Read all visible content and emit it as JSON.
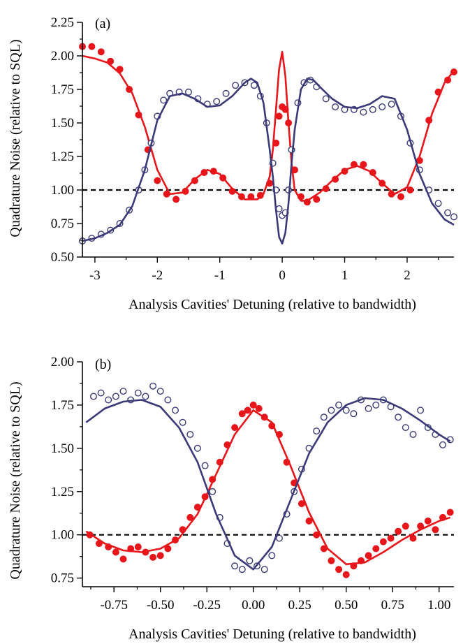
{
  "colors": {
    "red_series": "#e8151b",
    "blue_series": "#3a3a78",
    "reference_line": "#000000"
  },
  "chart_data": [
    {
      "panel_label": "(a)",
      "type": "scatter",
      "xlabel": "Analysis Cavities' Detuning (relative to bandwidth)",
      "ylabel": "Quadrature Noise (relative to SQL)",
      "xlim": [
        -3.2,
        2.75
      ],
      "ylim": [
        0.5,
        2.25
      ],
      "xticks": [
        -3,
        -2,
        -1,
        0,
        1,
        2
      ],
      "xtick_labels": [
        "-3",
        "-2",
        "-1",
        "0",
        "1",
        "2"
      ],
      "yticks": [
        0.5,
        0.75,
        1.0,
        1.25,
        1.5,
        1.75,
        2.0,
        2.25
      ],
      "ytick_labels": [
        "0.50",
        "0.75",
        "1.00",
        "1.25",
        "1.50",
        "1.75",
        "2.00",
        "2.25"
      ],
      "reference_line_y": 1.0,
      "grid": false,
      "series": [
        {
          "style": "filled-markers",
          "color_key": "red_series",
          "x": [
            -3.2,
            -3.05,
            -2.9,
            -2.75,
            -2.6,
            -2.45,
            -2.3,
            -2.15,
            -2.0,
            -1.85,
            -1.7,
            -1.55,
            -1.4,
            -1.25,
            -1.1,
            -0.95,
            -0.8,
            -0.65,
            -0.5,
            -0.35,
            -0.2,
            -0.1,
            -0.05,
            0.0,
            0.05,
            0.1,
            0.2,
            0.3,
            0.4,
            0.55,
            0.7,
            0.85,
            1.0,
            1.15,
            1.3,
            1.45,
            1.6,
            1.75,
            1.9,
            2.05,
            2.2,
            2.35,
            2.5,
            2.65,
            2.75
          ],
          "y": [
            2.07,
            2.07,
            2.03,
            1.96,
            1.9,
            1.75,
            1.56,
            1.3,
            1.07,
            0.97,
            0.93,
            0.99,
            1.07,
            1.13,
            1.14,
            1.09,
            0.99,
            0.95,
            0.95,
            0.96,
            1.05,
            1.35,
            1.55,
            1.62,
            1.6,
            1.5,
            1.15,
            0.95,
            0.91,
            0.93,
            1.01,
            1.08,
            1.14,
            1.19,
            1.19,
            1.13,
            1.05,
            0.97,
            0.95,
            1.0,
            1.22,
            1.52,
            1.73,
            1.82,
            1.88
          ]
        },
        {
          "style": "line",
          "color_key": "red_series",
          "x": [
            -3.2,
            -3.0,
            -2.8,
            -2.6,
            -2.4,
            -2.2,
            -2.0,
            -1.8,
            -1.6,
            -1.4,
            -1.2,
            -1.0,
            -0.8,
            -0.6,
            -0.4,
            -0.3,
            -0.2,
            -0.15,
            -0.1,
            -0.05,
            0.0,
            0.05,
            0.1,
            0.15,
            0.2,
            0.3,
            0.4,
            0.6,
            0.8,
            1.0,
            1.2,
            1.4,
            1.6,
            1.8,
            2.0,
            2.2,
            2.4,
            2.6,
            2.75
          ],
          "y": [
            2.0,
            1.98,
            1.95,
            1.87,
            1.72,
            1.47,
            1.15,
            0.97,
            0.98,
            1.08,
            1.15,
            1.12,
            1.01,
            0.93,
            0.93,
            0.97,
            1.1,
            1.3,
            1.6,
            1.9,
            2.03,
            1.85,
            1.5,
            1.2,
            1.0,
            0.92,
            0.92,
            0.98,
            1.07,
            1.15,
            1.18,
            1.14,
            1.05,
            0.97,
            1.02,
            1.25,
            1.57,
            1.8,
            1.89
          ]
        },
        {
          "style": "open-markers",
          "color_key": "blue_series",
          "x": [
            -3.2,
            -3.05,
            -2.9,
            -2.75,
            -2.6,
            -2.45,
            -2.3,
            -2.2,
            -2.1,
            -2.0,
            -1.9,
            -1.8,
            -1.65,
            -1.5,
            -1.35,
            -1.2,
            -1.05,
            -0.9,
            -0.75,
            -0.6,
            -0.45,
            -0.35,
            -0.25,
            -0.15,
            -0.1,
            -0.05,
            0.0,
            0.05,
            0.1,
            0.15,
            0.25,
            0.35,
            0.45,
            0.55,
            0.7,
            0.85,
            1.0,
            1.15,
            1.3,
            1.45,
            1.6,
            1.75,
            1.9,
            2.05,
            2.2,
            2.35,
            2.5,
            2.65,
            2.75
          ],
          "y": [
            0.62,
            0.64,
            0.67,
            0.7,
            0.75,
            0.85,
            1.0,
            1.15,
            1.35,
            1.55,
            1.67,
            1.72,
            1.73,
            1.73,
            1.68,
            1.64,
            1.66,
            1.72,
            1.78,
            1.8,
            1.78,
            1.7,
            1.5,
            1.2,
            1.0,
            0.86,
            0.81,
            0.83,
            1.0,
            1.3,
            1.65,
            1.8,
            1.82,
            1.77,
            1.68,
            1.62,
            1.6,
            1.6,
            1.58,
            1.6,
            1.62,
            1.64,
            1.55,
            1.35,
            1.15,
            1.0,
            0.9,
            0.83,
            0.8
          ]
        },
        {
          "style": "line",
          "color_key": "blue_series",
          "x": [
            -3.2,
            -3.0,
            -2.8,
            -2.6,
            -2.4,
            -2.2,
            -2.0,
            -1.8,
            -1.6,
            -1.4,
            -1.2,
            -1.0,
            -0.8,
            -0.6,
            -0.5,
            -0.4,
            -0.3,
            -0.2,
            -0.15,
            -0.1,
            -0.05,
            0.0,
            0.05,
            0.1,
            0.15,
            0.2,
            0.3,
            0.4,
            0.5,
            0.6,
            0.8,
            1.0,
            1.2,
            1.4,
            1.6,
            1.8,
            2.0,
            2.2,
            2.4,
            2.6,
            2.75
          ],
          "y": [
            0.62,
            0.64,
            0.68,
            0.74,
            0.88,
            1.15,
            1.52,
            1.7,
            1.72,
            1.68,
            1.62,
            1.63,
            1.7,
            1.8,
            1.83,
            1.8,
            1.65,
            1.3,
            1.1,
            0.85,
            0.65,
            0.6,
            0.68,
            0.9,
            1.2,
            1.45,
            1.75,
            1.83,
            1.82,
            1.77,
            1.68,
            1.62,
            1.61,
            1.64,
            1.7,
            1.68,
            1.45,
            1.12,
            0.9,
            0.78,
            0.74
          ]
        }
      ]
    },
    {
      "panel_label": "(b)",
      "type": "scatter",
      "xlabel": "Analysis Cavities' Detuning (relative to bandwidth)",
      "ylabel": "Quadrature Noise (relative to SQL)",
      "xlim": [
        -0.92,
        1.08
      ],
      "ylim": [
        0.7,
        2.0
      ],
      "xticks": [
        -0.75,
        -0.5,
        -0.25,
        0.0,
        0.25,
        0.5,
        0.75,
        1.0
      ],
      "xtick_labels": [
        "-0.75",
        "-0.50",
        "-0.25",
        "0.00",
        "0.25",
        "0.50",
        "0.75",
        "1.00"
      ],
      "yticks": [
        0.75,
        1.0,
        1.25,
        1.5,
        1.75,
        2.0
      ],
      "ytick_labels": [
        "0.75",
        "1.00",
        "1.25",
        "1.50",
        "1.75",
        "2.00"
      ],
      "reference_line_y": 1.0,
      "grid": false,
      "series": [
        {
          "style": "filled-markers",
          "color_key": "red_series",
          "x": [
            -0.88,
            -0.83,
            -0.78,
            -0.74,
            -0.7,
            -0.66,
            -0.62,
            -0.58,
            -0.54,
            -0.5,
            -0.46,
            -0.42,
            -0.38,
            -0.34,
            -0.3,
            -0.26,
            -0.22,
            -0.18,
            -0.14,
            -0.1,
            -0.06,
            -0.03,
            0.0,
            0.03,
            0.06,
            0.1,
            0.14,
            0.18,
            0.22,
            0.26,
            0.3,
            0.34,
            0.38,
            0.42,
            0.46,
            0.5,
            0.54,
            0.58,
            0.62,
            0.66,
            0.7,
            0.74,
            0.78,
            0.82,
            0.86,
            0.9,
            0.94,
            0.98,
            1.02,
            1.06
          ],
          "y": [
            1.0,
            0.95,
            0.93,
            0.9,
            0.86,
            0.92,
            0.93,
            0.9,
            0.87,
            0.88,
            0.92,
            0.97,
            1.03,
            1.1,
            1.16,
            1.22,
            1.32,
            1.42,
            1.52,
            1.62,
            1.7,
            1.72,
            1.75,
            1.73,
            1.68,
            1.63,
            1.58,
            1.42,
            1.3,
            1.18,
            1.08,
            1.0,
            0.92,
            0.85,
            0.8,
            0.77,
            0.82,
            0.85,
            0.88,
            0.92,
            0.96,
            0.98,
            1.02,
            1.05,
            0.98,
            1.05,
            1.08,
            1.03,
            1.1,
            1.13
          ]
        },
        {
          "style": "line",
          "color_key": "red_series",
          "x": [
            -0.9,
            -0.8,
            -0.7,
            -0.6,
            -0.5,
            -0.4,
            -0.3,
            -0.2,
            -0.1,
            0.0,
            0.1,
            0.2,
            0.3,
            0.4,
            0.5,
            0.6,
            0.7,
            0.8,
            0.9,
            1.0,
            1.06
          ],
          "y": [
            1.02,
            0.95,
            0.91,
            0.9,
            0.92,
            0.98,
            1.12,
            1.35,
            1.58,
            1.72,
            1.65,
            1.4,
            1.13,
            0.92,
            0.83,
            0.84,
            0.9,
            0.97,
            1.03,
            1.08,
            1.1
          ]
        },
        {
          "style": "open-markers",
          "color_key": "blue_series",
          "x": [
            -0.86,
            -0.82,
            -0.78,
            -0.74,
            -0.7,
            -0.66,
            -0.62,
            -0.58,
            -0.54,
            -0.5,
            -0.46,
            -0.42,
            -0.38,
            -0.34,
            -0.3,
            -0.26,
            -0.22,
            -0.18,
            -0.14,
            -0.1,
            -0.06,
            -0.02,
            0.02,
            0.06,
            0.1,
            0.14,
            0.18,
            0.22,
            0.26,
            0.3,
            0.34,
            0.38,
            0.42,
            0.46,
            0.5,
            0.54,
            0.58,
            0.62,
            0.66,
            0.7,
            0.74,
            0.78,
            0.82,
            0.86,
            0.9,
            0.94,
            0.98,
            1.02,
            1.06
          ],
          "y": [
            1.8,
            1.82,
            1.78,
            1.8,
            1.83,
            1.78,
            1.82,
            1.8,
            1.86,
            1.83,
            1.78,
            1.72,
            1.65,
            1.58,
            1.5,
            1.4,
            1.25,
            1.1,
            0.95,
            0.82,
            0.8,
            0.85,
            0.82,
            0.8,
            0.88,
            0.98,
            1.12,
            1.25,
            1.38,
            1.5,
            1.6,
            1.68,
            1.72,
            1.75,
            1.72,
            1.7,
            1.78,
            1.73,
            1.75,
            1.78,
            1.74,
            1.68,
            1.62,
            1.58,
            1.72,
            1.62,
            1.58,
            1.52,
            1.55
          ]
        },
        {
          "style": "line",
          "color_key": "blue_series",
          "x": [
            -0.9,
            -0.8,
            -0.7,
            -0.6,
            -0.5,
            -0.4,
            -0.3,
            -0.2,
            -0.1,
            0.0,
            0.1,
            0.2,
            0.3,
            0.4,
            0.5,
            0.6,
            0.7,
            0.8,
            0.9,
            1.0,
            1.06
          ],
          "y": [
            1.65,
            1.73,
            1.77,
            1.78,
            1.74,
            1.62,
            1.42,
            1.12,
            0.88,
            0.8,
            0.93,
            1.2,
            1.47,
            1.65,
            1.75,
            1.79,
            1.78,
            1.73,
            1.66,
            1.58,
            1.54
          ]
        }
      ]
    }
  ]
}
